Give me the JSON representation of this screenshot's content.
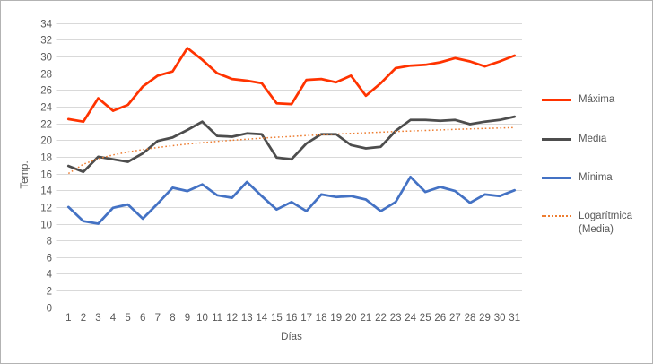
{
  "chart_data": {
    "type": "line",
    "title": "",
    "xlabel": "Días",
    "ylabel": "Temp.",
    "x": [
      1,
      2,
      3,
      4,
      5,
      6,
      7,
      8,
      9,
      10,
      11,
      12,
      13,
      14,
      15,
      16,
      17,
      18,
      19,
      20,
      21,
      22,
      23,
      24,
      25,
      26,
      27,
      28,
      29,
      30,
      31
    ],
    "ylim": [
      0,
      34
    ],
    "ytick_step": 2,
    "grid": true,
    "legend_position": "right",
    "series": [
      {
        "name": "Máxima",
        "color": "#FF3300",
        "style": "solid",
        "values": [
          22.5,
          22.2,
          25.0,
          23.5,
          24.2,
          26.4,
          27.7,
          28.2,
          31.0,
          29.6,
          28.0,
          27.3,
          27.1,
          26.8,
          24.4,
          24.3,
          27.2,
          27.3,
          26.9,
          27.7,
          25.3,
          26.8,
          28.6,
          28.9,
          29.0,
          29.3,
          29.8,
          29.4,
          28.8,
          29.4,
          30.1
        ]
      },
      {
        "name": "Media",
        "color": "#4D4D4D",
        "style": "solid",
        "values": [
          16.9,
          16.2,
          18.0,
          17.7,
          17.4,
          18.4,
          19.9,
          20.3,
          21.2,
          22.2,
          20.5,
          20.4,
          20.8,
          20.7,
          17.9,
          17.7,
          19.6,
          20.7,
          20.7,
          19.4,
          19.0,
          19.2,
          21.1,
          22.4,
          22.4,
          22.3,
          22.4,
          21.9,
          22.2,
          22.4,
          22.8
        ]
      },
      {
        "name": "Mínima",
        "color": "#4472C4",
        "style": "solid",
        "values": [
          12.0,
          10.3,
          10.0,
          11.9,
          12.3,
          10.6,
          12.4,
          14.3,
          13.9,
          14.7,
          13.4,
          13.1,
          15.0,
          13.3,
          11.7,
          12.6,
          11.5,
          13.5,
          13.2,
          13.3,
          12.9,
          11.5,
          12.6,
          15.6,
          13.8,
          14.4,
          13.9,
          12.5,
          13.5,
          13.3,
          14.0
        ]
      },
      {
        "name": "Logarítmica (Media)",
        "color": "#ED7D31",
        "style": "dotted",
        "trendline": {
          "form": "y = a + b·ln(x)",
          "a": 16.0,
          "b": 1.6
        }
      }
    ]
  },
  "colors": {
    "background": "#FFFFFF",
    "frame_border": "#B3B3B3",
    "gridline": "#D9D9D9",
    "axis_line": "#BFBFBF",
    "axis_text": "#595959"
  }
}
